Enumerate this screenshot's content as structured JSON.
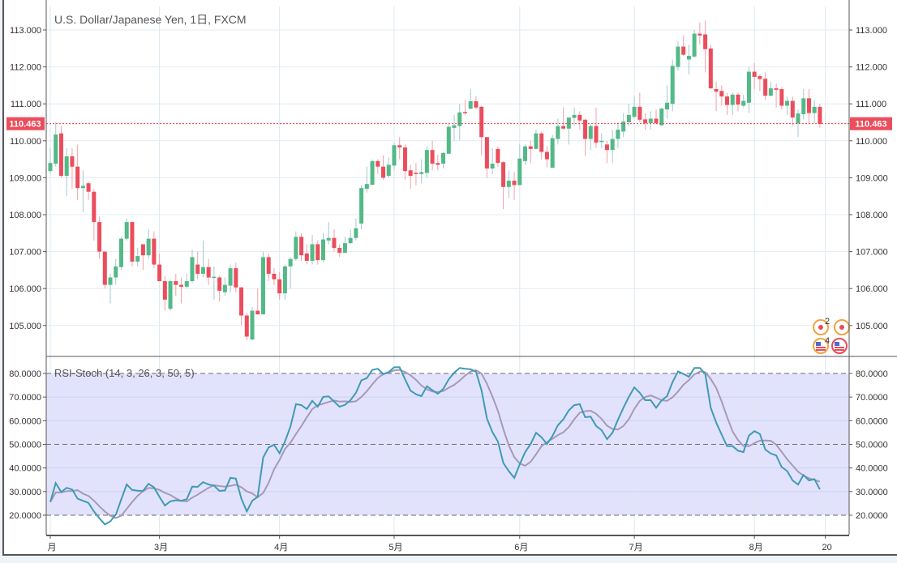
{
  "chart_data": [
    {
      "type": "candlestick",
      "title": "U.S. Dollar/Japanese Yen, 1日, FXCM",
      "current_price": "110.463",
      "current_price_value": 110.463,
      "y_ticks": [
        "113.000",
        "112.000",
        "111.000",
        "110.000",
        "109.000",
        "108.000",
        "107.000",
        "106.000",
        "105.000"
      ],
      "y_tick_values": [
        113,
        112,
        111,
        110,
        109,
        108,
        107,
        106,
        105
      ],
      "x_labels": [
        {
          "label": "月",
          "index": 0
        },
        {
          "label": "3月",
          "index": 20
        },
        {
          "label": "4月",
          "index": 42
        },
        {
          "label": "5月",
          "index": 63
        },
        {
          "label": "6月",
          "index": 86
        },
        {
          "label": "7月",
          "index": 107
        },
        {
          "label": "8月",
          "index": 129
        },
        {
          "label": "20",
          "index": 142
        }
      ],
      "colors": {
        "up": "#53b987",
        "down": "#eb4d5c",
        "up_wick": "#a3c9cf",
        "down_wick": "#f4a0a8",
        "price_line": "#f23645"
      },
      "ohlc": [
        [
          109.18,
          109.8,
          109.1,
          109.4
        ],
        [
          109.38,
          110.5,
          109.3,
          110.17
        ],
        [
          110.2,
          110.4,
          109.0,
          109.05
        ],
        [
          109.05,
          109.8,
          108.5,
          109.58
        ],
        [
          109.58,
          109.8,
          108.7,
          109.3
        ],
        [
          109.3,
          109.9,
          108.4,
          108.72
        ],
        [
          108.72,
          109.2,
          108.07,
          108.78
        ],
        [
          108.85,
          108.9,
          108.4,
          108.62
        ],
        [
          108.62,
          108.7,
          107.3,
          107.8
        ],
        [
          107.8,
          107.95,
          106.8,
          107.0
        ],
        [
          107.0,
          107.0,
          106.0,
          106.1
        ],
        [
          106.1,
          106.4,
          105.6,
          106.3
        ],
        [
          106.3,
          106.8,
          106.1,
          106.6
        ],
        [
          106.58,
          107.4,
          106.5,
          107.35
        ],
        [
          107.35,
          107.9,
          107.3,
          107.8
        ],
        [
          107.8,
          107.8,
          106.6,
          106.73
        ],
        [
          106.73,
          107.1,
          106.6,
          106.88
        ],
        [
          107.2,
          107.2,
          106.5,
          106.9
        ],
        [
          106.9,
          107.6,
          106.8,
          107.35
        ],
        [
          107.35,
          107.55,
          106.55,
          106.65
        ],
        [
          106.65,
          106.95,
          106.2,
          106.2
        ],
        [
          106.2,
          106.35,
          105.4,
          105.7
        ],
        [
          105.45,
          106.25,
          105.4,
          106.2
        ],
        [
          106.2,
          106.4,
          105.8,
          106.1
        ],
        [
          106.1,
          106.3,
          105.6,
          106.05
        ],
        [
          106.05,
          106.4,
          106.0,
          106.2
        ],
        [
          106.2,
          107.05,
          106.15,
          106.85
        ],
        [
          106.65,
          107.0,
          106.25,
          106.4
        ],
        [
          106.4,
          107.3,
          106.3,
          106.58
        ],
        [
          106.58,
          106.8,
          106.1,
          106.3
        ],
        [
          106.3,
          106.6,
          105.7,
          106.32
        ],
        [
          106.3,
          106.35,
          105.65,
          105.94
        ],
        [
          105.9,
          106.3,
          105.8,
          106.1
        ],
        [
          106.08,
          106.65,
          105.9,
          106.55
        ],
        [
          106.55,
          106.7,
          105.9,
          106.03
        ],
        [
          106.03,
          106.05,
          105.0,
          105.27
        ],
        [
          105.27,
          105.35,
          104.6,
          104.7
        ],
        [
          104.62,
          105.5,
          104.6,
          105.4
        ],
        [
          105.4,
          106.0,
          105.3,
          105.3
        ],
        [
          105.3,
          107.0,
          105.3,
          106.85
        ],
        [
          106.85,
          106.95,
          106.2,
          106.4
        ],
        [
          106.4,
          106.55,
          106.1,
          106.25
        ],
        [
          106.25,
          106.45,
          105.7,
          105.87
        ],
        [
          105.87,
          106.65,
          105.7,
          106.6
        ],
        [
          106.6,
          106.85,
          106.0,
          106.8
        ],
        [
          106.8,
          107.55,
          106.75,
          107.4
        ],
        [
          107.4,
          107.5,
          106.75,
          106.9
        ],
        [
          106.95,
          107.2,
          106.65,
          106.75
        ],
        [
          106.75,
          107.45,
          106.65,
          107.2
        ],
        [
          107.2,
          107.3,
          106.65,
          106.77
        ],
        [
          106.77,
          107.5,
          106.7,
          107.33
        ],
        [
          107.3,
          107.8,
          107.2,
          107.37
        ],
        [
          107.37,
          107.6,
          107.0,
          107.1
        ],
        [
          107.1,
          107.2,
          106.85,
          106.97
        ],
        [
          106.97,
          107.4,
          106.95,
          107.23
        ],
        [
          107.23,
          107.6,
          107.2,
          107.37
        ],
        [
          107.37,
          107.9,
          107.3,
          107.63
        ],
        [
          107.76,
          108.8,
          107.6,
          108.72
        ],
        [
          108.7,
          109.3,
          108.6,
          108.83
        ],
        [
          108.81,
          109.5,
          108.8,
          109.45
        ],
        [
          109.45,
          109.5,
          109.1,
          109.3
        ],
        [
          109.3,
          109.6,
          108.95,
          109.0
        ],
        [
          109.05,
          109.55,
          109.0,
          109.35
        ],
        [
          109.33,
          109.95,
          109.2,
          109.88
        ],
        [
          109.88,
          110.1,
          109.5,
          109.82
        ],
        [
          109.82,
          109.9,
          108.95,
          109.18
        ],
        [
          109.2,
          109.35,
          108.7,
          109.05
        ],
        [
          109.13,
          109.4,
          108.8,
          109.1
        ],
        [
          109.1,
          109.5,
          108.85,
          109.15
        ],
        [
          109.13,
          109.85,
          109.0,
          109.75
        ],
        [
          109.75,
          110.0,
          109.2,
          109.38
        ],
        [
          109.4,
          109.62,
          109.2,
          109.35
        ],
        [
          109.38,
          109.7,
          109.25,
          109.67
        ],
        [
          109.65,
          110.45,
          109.65,
          110.38
        ],
        [
          110.35,
          110.7,
          110.0,
          110.42
        ],
        [
          110.4,
          111.0,
          110.0,
          110.77
        ],
        [
          110.78,
          111.1,
          110.7,
          110.76
        ],
        [
          110.87,
          111.4,
          110.85,
          111.07
        ],
        [
          111.07,
          111.2,
          110.85,
          110.9
        ],
        [
          110.92,
          110.95,
          109.6,
          110.1
        ],
        [
          110.1,
          110.1,
          109.0,
          109.25
        ],
        [
          109.25,
          109.8,
          109.1,
          109.38
        ],
        [
          109.78,
          109.85,
          109.3,
          109.4
        ],
        [
          109.42,
          109.45,
          108.15,
          108.75
        ],
        [
          108.75,
          109.2,
          108.45,
          108.92
        ],
        [
          108.92,
          109.15,
          108.4,
          108.8
        ],
        [
          108.8,
          109.9,
          108.8,
          109.52
        ],
        [
          109.45,
          109.9,
          109.35,
          109.85
        ],
        [
          109.85,
          110.0,
          109.4,
          109.78
        ],
        [
          109.78,
          110.3,
          109.8,
          110.2
        ],
        [
          110.2,
          110.25,
          109.5,
          109.7
        ],
        [
          109.7,
          109.85,
          109.28,
          109.5
        ],
        [
          109.27,
          110.15,
          109.27,
          110.07
        ],
        [
          110.05,
          110.6,
          109.9,
          110.4
        ],
        [
          110.4,
          110.9,
          110.3,
          110.33
        ],
        [
          110.33,
          110.6,
          109.9,
          110.63
        ],
        [
          110.62,
          110.9,
          110.4,
          110.7
        ],
        [
          110.7,
          110.8,
          110.3,
          110.55
        ],
        [
          110.57,
          110.6,
          109.6,
          110.05
        ],
        [
          110.05,
          110.45,
          109.75,
          110.4
        ],
        [
          110.4,
          110.9,
          109.8,
          109.95
        ],
        [
          109.97,
          110.2,
          109.8,
          110.0
        ],
        [
          109.9,
          110.0,
          109.4,
          109.75
        ],
        [
          109.75,
          110.3,
          109.4,
          110.05
        ],
        [
          110.05,
          110.5,
          109.8,
          110.3
        ],
        [
          110.25,
          110.75,
          110.1,
          110.52
        ],
        [
          110.5,
          111.0,
          110.4,
          110.7
        ],
        [
          110.65,
          111.2,
          110.6,
          110.92
        ],
        [
          110.92,
          111.3,
          110.5,
          110.57
        ],
        [
          110.58,
          110.75,
          110.3,
          110.48
        ],
        [
          110.48,
          110.8,
          110.3,
          110.6
        ],
        [
          110.6,
          110.85,
          110.45,
          110.48
        ],
        [
          110.42,
          110.9,
          110.4,
          110.87
        ],
        [
          110.85,
          111.5,
          110.6,
          111.03
        ],
        [
          111.0,
          112.2,
          110.8,
          112.03
        ],
        [
          112.0,
          112.7,
          111.9,
          112.55
        ],
        [
          112.55,
          112.85,
          112.3,
          112.33
        ],
        [
          112.2,
          112.6,
          111.8,
          112.3
        ],
        [
          112.28,
          113.0,
          112.25,
          112.9
        ],
        [
          112.9,
          113.2,
          112.6,
          112.85
        ],
        [
          112.88,
          113.25,
          111.85,
          112.48
        ],
        [
          112.5,
          112.6,
          111.4,
          111.42
        ],
        [
          111.4,
          111.6,
          110.8,
          111.33
        ],
        [
          111.35,
          111.5,
          110.95,
          111.2
        ],
        [
          111.2,
          111.3,
          110.7,
          110.97
        ],
        [
          110.97,
          111.3,
          110.7,
          111.25
        ],
        [
          111.25,
          111.3,
          110.8,
          110.98
        ],
        [
          110.95,
          111.25,
          110.9,
          111.08
        ],
        [
          111.03,
          112.0,
          110.75,
          111.87
        ],
        [
          111.87,
          112.1,
          111.4,
          111.73
        ],
        [
          111.75,
          111.8,
          111.35,
          111.67
        ],
        [
          111.68,
          111.85,
          111.1,
          111.22
        ],
        [
          111.22,
          111.6,
          111.2,
          111.42
        ],
        [
          111.42,
          111.55,
          110.9,
          111.38
        ],
        [
          111.4,
          111.45,
          110.85,
          110.95
        ],
        [
          110.95,
          111.2,
          110.7,
          111.08
        ],
        [
          111.08,
          111.2,
          110.4,
          110.63
        ],
        [
          110.47,
          110.85,
          110.1,
          110.74
        ],
        [
          110.72,
          111.4,
          110.58,
          111.15
        ],
        [
          111.15,
          111.4,
          110.47,
          110.75
        ],
        [
          110.75,
          111.1,
          110.47,
          110.92
        ],
        [
          110.92,
          111.0,
          110.35,
          110.46
        ]
      ]
    },
    {
      "type": "line",
      "title": "RSI-Stoch (14, 3, 26, 3, 50, 5)",
      "y_ticks": [
        "80.0000",
        "70.0000",
        "60.0000",
        "50.0000",
        "40.0000",
        "30.0000",
        "20.0000"
      ],
      "y_tick_values": [
        80,
        70,
        60,
        50,
        40,
        30,
        20
      ],
      "ylim": [
        20,
        80
      ],
      "bands": {
        "upper": 80,
        "middle": 50,
        "lower": 20
      },
      "d_period": 5,
      "colors": {
        "k": "#3f9bb3",
        "d": "#a699b8",
        "band_fill": "#e3e2fd",
        "band_line": "#6b6b7b"
      },
      "k": [
        25.6,
        33.6,
        29.8,
        31.6,
        30.9,
        27,
        26.1,
        25.2,
        21.6,
        18.7,
        16.1,
        17.4,
        20.2,
        26.7,
        33,
        30.7,
        30.4,
        30.3,
        33.3,
        31.8,
        27.8,
        24.1,
        25.9,
        26.3,
        26.1,
        26.8,
        32.1,
        32,
        34,
        33,
        32.5,
        30.3,
        30.5,
        35.8,
        35.5,
        27,
        21.6,
        26.1,
        27.8,
        44.4,
        48.7,
        49.8,
        46.2,
        51.2,
        57.5,
        67,
        66.6,
        64.9,
        68.4,
        65.9,
        70.1,
        70.3,
        68.1,
        65.9,
        66.7,
        68.7,
        71.8,
        77.1,
        78,
        81.5,
        82,
        79.8,
        80.6,
        82.6,
        82.6,
        77.5,
        72.7,
        71.2,
        70.4,
        74.6,
        72.9,
        71.4,
        73.5,
        77.5,
        80.3,
        82.3,
        82,
        81.8,
        80.7,
        72.9,
        60.9,
        55.2,
        51.2,
        42.1,
        38.7,
        35.8,
        41.5,
        46.7,
        50.1,
        54.9,
        53,
        50.1,
        53.5,
        58.1,
        60.6,
        64.4,
        66.6,
        67,
        61.5,
        61.7,
        57.8,
        56,
        52.2,
        54.9,
        60.4,
        65.5,
        70.1,
        74.1,
        71.8,
        68.7,
        68.7,
        65.5,
        68.6,
        70.4,
        76.3,
        80.9,
        79.8,
        78.6,
        82.3,
        82.3,
        79.8,
        65.5,
        59.2,
        54.1,
        49.2,
        49.2,
        47.3,
        46.7,
        53.7,
        55.6,
        54.4,
        47.8,
        46.1,
        45.3,
        40.4,
        38.7,
        34.7,
        33,
        37,
        34.7,
        35.3,
        30.9
      ]
    }
  ],
  "badges": {
    "events_count": "2",
    "flags_count": "4"
  }
}
